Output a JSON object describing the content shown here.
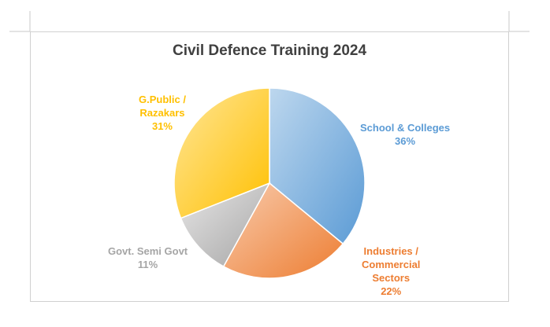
{
  "chart_data": {
    "type": "pie",
    "title": "Civil Defence Training 2024",
    "slices": [
      {
        "label_lines": [
          "School & Colleges"
        ],
        "percent_text": "36%",
        "value": 36,
        "color": "#5b9bd5",
        "color_light": "#bdd7ee"
      },
      {
        "label_lines": [
          "Industries /",
          "Commercial",
          "Sectors"
        ],
        "percent_text": "22%",
        "value": 22,
        "color": "#ed7d31",
        "color_light": "#f8cbad"
      },
      {
        "label_lines": [
          "Govt. Semi Govt"
        ],
        "percent_text": "11%",
        "value": 11,
        "color": "#a5a5a5",
        "color_light": "#e7e6e6"
      },
      {
        "label_lines": [
          "G.Public /",
          "Razakars"
        ],
        "percent_text": "31%",
        "value": 31,
        "color": "#ffc000",
        "color_light": "#ffe699"
      }
    ],
    "label_colors": [
      "#5b9bd5",
      "#ed7d31",
      "#a5a5a5",
      "#ffc000"
    ]
  }
}
